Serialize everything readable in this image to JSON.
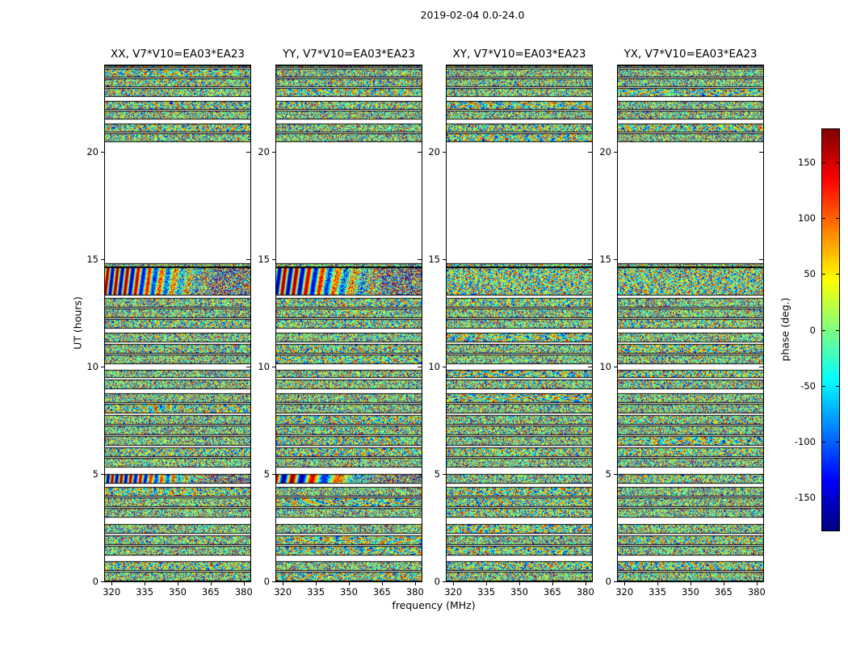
{
  "figure": {
    "title": "2019-02-04 0.0-24.0",
    "xlabel": "frequency (MHz)",
    "ylabel": "UT (hours)"
  },
  "chart_data": {
    "type": "heatmap",
    "title": "2019-02-04 0.0-24.0",
    "xlabel": "frequency (MHz)",
    "ylabel": "UT (hours)",
    "panels": [
      {
        "pol": "XX",
        "title": "XX, V7*V10=EA03*EA23",
        "fringes": true
      },
      {
        "pol": "YY",
        "title": "YY, V7*V10=EA03*EA23",
        "fringes": true
      },
      {
        "pol": "XY",
        "title": "XY, V7*V10=EA03*EA23",
        "fringes": false
      },
      {
        "pol": "YX",
        "title": "YX, V7*V10=EA03*EA23",
        "fringes": false
      }
    ],
    "x_axis": {
      "label": "frequency (MHz)",
      "ticks": [
        320,
        335,
        350,
        365,
        380
      ],
      "range": [
        317,
        383
      ],
      "unit": "MHz"
    },
    "y_axis": {
      "label": "UT (hours)",
      "ticks": [
        0,
        5,
        10,
        15,
        20
      ],
      "range": [
        0,
        24
      ],
      "unit": "hours"
    },
    "colorbar": {
      "label": "phase (deg.)",
      "ticks": [
        -150,
        -100,
        -50,
        0,
        50,
        100,
        150
      ],
      "range": [
        -180,
        180
      ],
      "colormap": "jet"
    },
    "values_description": "interferometric visibility phase noise spanning -180..180 deg within observed scan windows; white rows = no data; large gap approx UT 14.8-20.45; coherent fringe stripes visible in XX and YY panels near UT 5 and UT 13.3-14.6",
    "data_segments_ut": [
      [
        0.0,
        0.45
      ],
      [
        0.5,
        0.95
      ],
      [
        1.2,
        1.65
      ],
      [
        1.7,
        2.15
      ],
      [
        2.2,
        2.65
      ],
      [
        2.95,
        3.4
      ],
      [
        3.45,
        3.9
      ],
      [
        3.95,
        4.4
      ],
      [
        4.55,
        5.0
      ],
      [
        5.3,
        5.75
      ],
      [
        5.8,
        6.25
      ],
      [
        6.3,
        6.75
      ],
      [
        6.8,
        7.25
      ],
      [
        7.3,
        7.75
      ],
      [
        7.8,
        8.25
      ],
      [
        8.3,
        8.75
      ],
      [
        8.95,
        9.4
      ],
      [
        9.45,
        9.85
      ],
      [
        10.1,
        10.55
      ],
      [
        10.6,
        11.05
      ],
      [
        11.1,
        11.55
      ],
      [
        11.75,
        12.2
      ],
      [
        12.25,
        12.7
      ],
      [
        12.75,
        13.2
      ],
      [
        13.3,
        14.6
      ],
      [
        14.6,
        14.8
      ],
      [
        20.45,
        20.85
      ],
      [
        20.9,
        21.3
      ],
      [
        21.5,
        21.9
      ],
      [
        21.95,
        22.35
      ],
      [
        22.55,
        22.95
      ],
      [
        23.0,
        23.4
      ],
      [
        23.45,
        23.85
      ],
      [
        23.9,
        24.0
      ]
    ],
    "fringe_segments_ut": [
      [
        4.55,
        5.0
      ],
      [
        13.3,
        14.6
      ]
    ]
  }
}
